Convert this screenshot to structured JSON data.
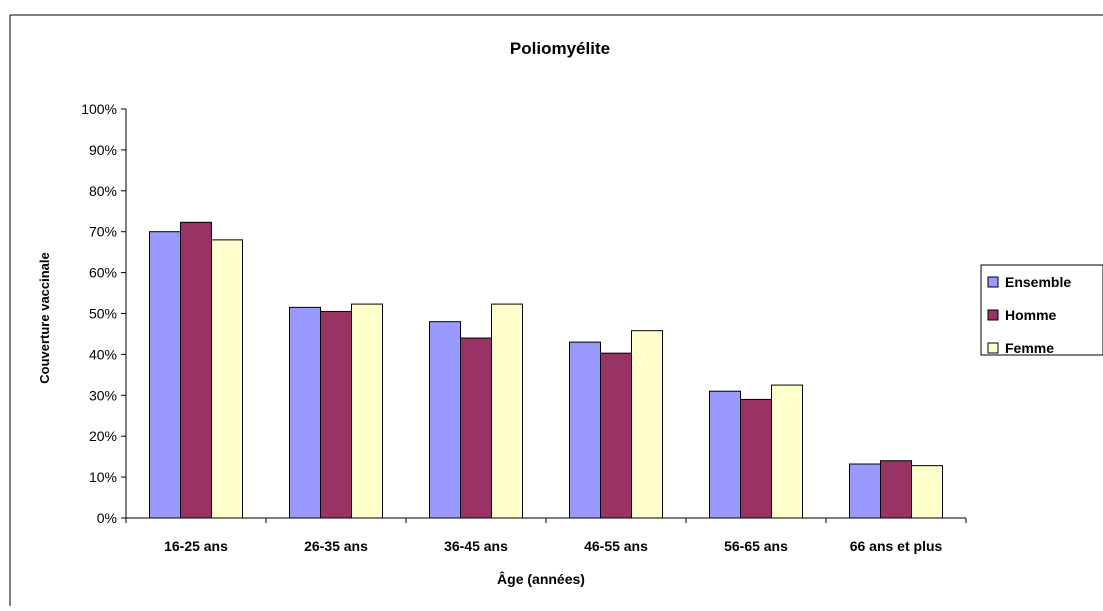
{
  "chart_data": {
    "type": "bar",
    "title": "Poliomyélite",
    "xlabel": "Âge (années)",
    "ylabel": "Couverture vaccinale",
    "categories": [
      "16-25 ans",
      "26-35 ans",
      "36-45 ans",
      "46-55 ans",
      "56-65 ans",
      "66 ans et plus"
    ],
    "series": [
      {
        "name": "Ensemble",
        "values": [
          70,
          51.5,
          48,
          43,
          31,
          13.2
        ],
        "color": "#9999ff"
      },
      {
        "name": "Homme",
        "values": [
          72.3,
          50.5,
          44,
          40.3,
          29,
          14
        ],
        "color": "#993366"
      },
      {
        "name": "Femme",
        "values": [
          68,
          52.3,
          52.3,
          45.8,
          32.5,
          12.8
        ],
        "color": "#ffffcc"
      }
    ],
    "ylim": [
      0,
      100
    ],
    "yticks": [
      "0%",
      "10%",
      "20%",
      "30%",
      "40%",
      "50%",
      "60%",
      "70%",
      "80%",
      "90%",
      "100%"
    ],
    "grid": false,
    "legend_position": "right"
  }
}
